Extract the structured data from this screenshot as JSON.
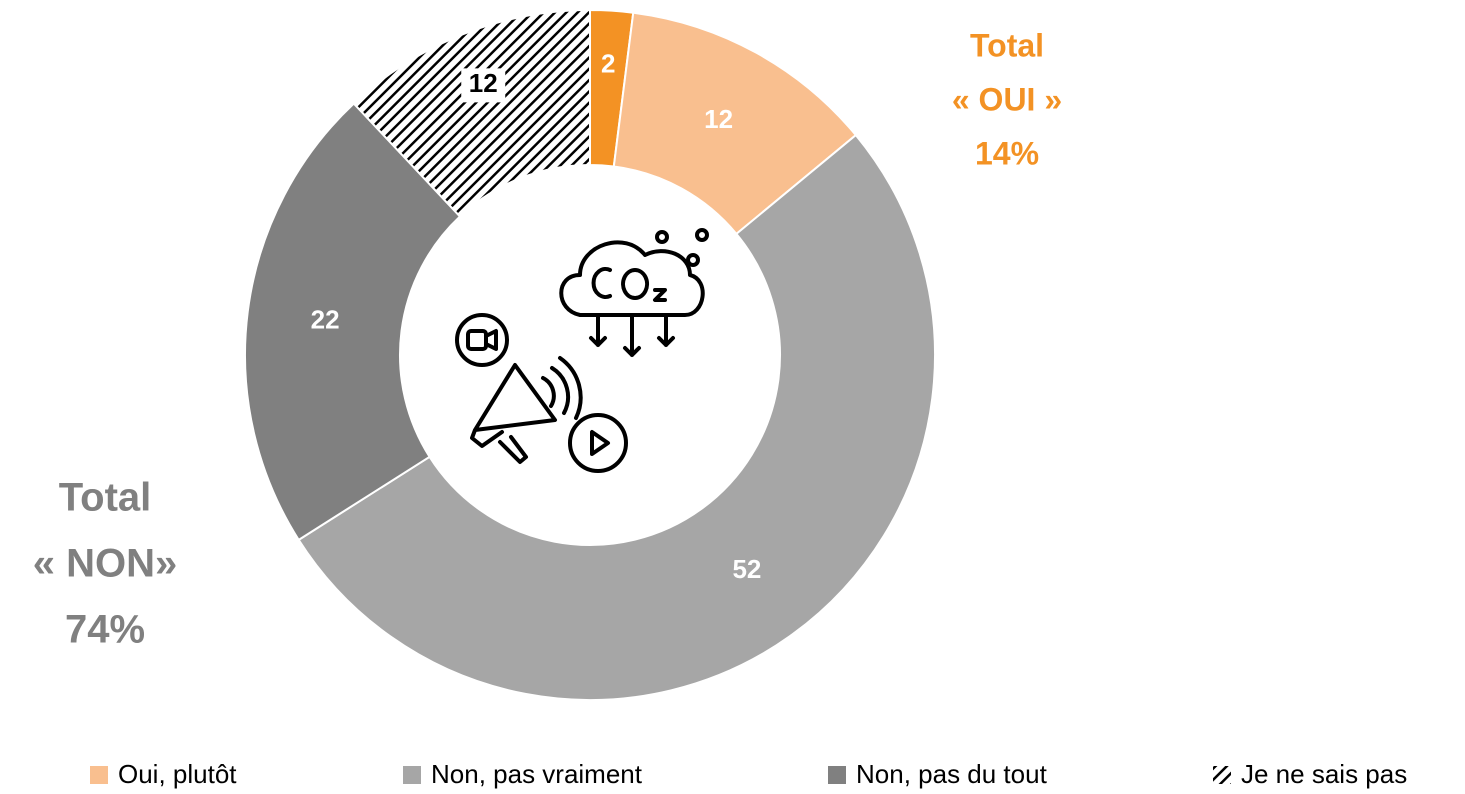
{
  "chart_data": {
    "type": "donut",
    "categories": [
      null,
      "Oui, plutôt",
      "Non, pas vraiment",
      "Non, pas du tout",
      "Je ne sais pas"
    ],
    "values": [
      2,
      12,
      52,
      22,
      12
    ],
    "colors": [
      "#F39224",
      "#F9BF8F",
      "#A6A6A6",
      "#808080",
      "#000000"
    ],
    "hatched": [
      false,
      false,
      false,
      false,
      true
    ],
    "legend": "bottom",
    "annotations": [
      {
        "lines": [
          "Total",
          "« OUI »",
          "14%"
        ],
        "color": "#F39224"
      },
      {
        "lines": [
          "Total",
          "« NON»",
          "74%"
        ],
        "color": "#808080"
      }
    ]
  }
}
